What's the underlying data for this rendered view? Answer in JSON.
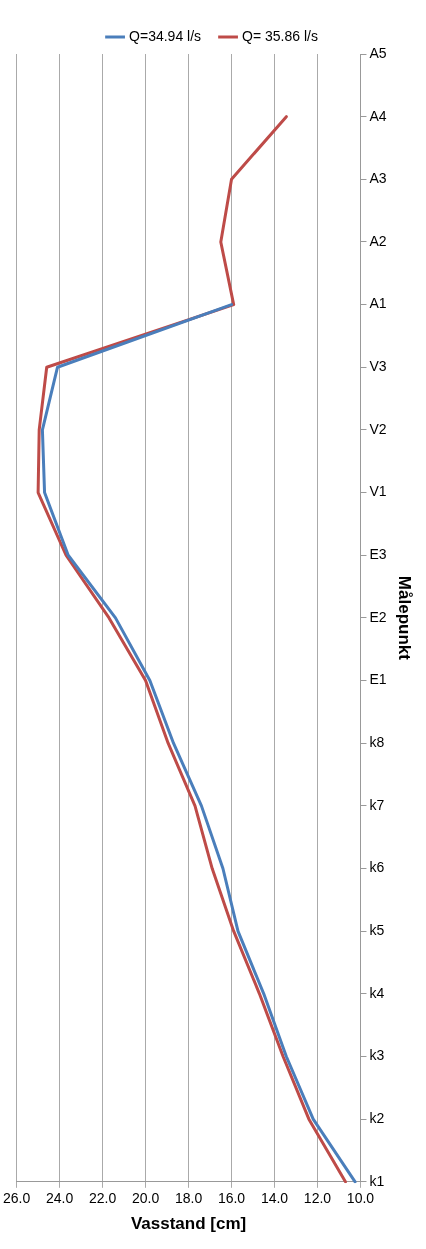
{
  "chart_data": {
    "type": "line",
    "orientation": "horizontal",
    "xlabel": "Vasstand [cm]",
    "ylabel": "Målepunkt",
    "categories": [
      "A5",
      "A4",
      "A3",
      "A2",
      "A1",
      "V3",
      "V2",
      "V1",
      "E3",
      "E2",
      "E1",
      "k8",
      "k7",
      "k6",
      "k5",
      "k4",
      "k3",
      "k2",
      "k1"
    ],
    "series": [
      {
        "name": "Q=34.94 l/s",
        "color": "#4a7ebb",
        "values": [
          null,
          null,
          null,
          null,
          16.0,
          24.1,
          24.8,
          24.7,
          23.6,
          21.4,
          19.8,
          18.7,
          17.4,
          16.4,
          15.7,
          14.5,
          13.45,
          12.2,
          10.25
        ]
      },
      {
        "name": "Q= 35.86 l/s",
        "color": "#be4b48",
        "values": [
          null,
          13.45,
          16.0,
          16.5,
          15.9,
          24.6,
          24.95,
          25.0,
          23.7,
          21.7,
          20.0,
          18.95,
          17.7,
          16.9,
          15.9,
          14.7,
          13.6,
          12.4,
          10.7
        ]
      }
    ],
    "xlim": [
      26,
      10
    ],
    "xticks": [
      {
        "value": 26,
        "label": "26.0"
      },
      {
        "value": 24,
        "label": "24.0"
      },
      {
        "value": 22,
        "label": "22.0"
      },
      {
        "value": 20,
        "label": "20.0"
      },
      {
        "value": 18,
        "label": "18.0"
      },
      {
        "value": 16,
        "label": "16.0"
      },
      {
        "value": 14,
        "label": "14.0"
      },
      {
        "value": 12,
        "label": "12.0"
      },
      {
        "value": 10,
        "label": "10.0"
      }
    ],
    "grid": "x",
    "legend": "top",
    "marker": "none",
    "line_style": "solid"
  }
}
